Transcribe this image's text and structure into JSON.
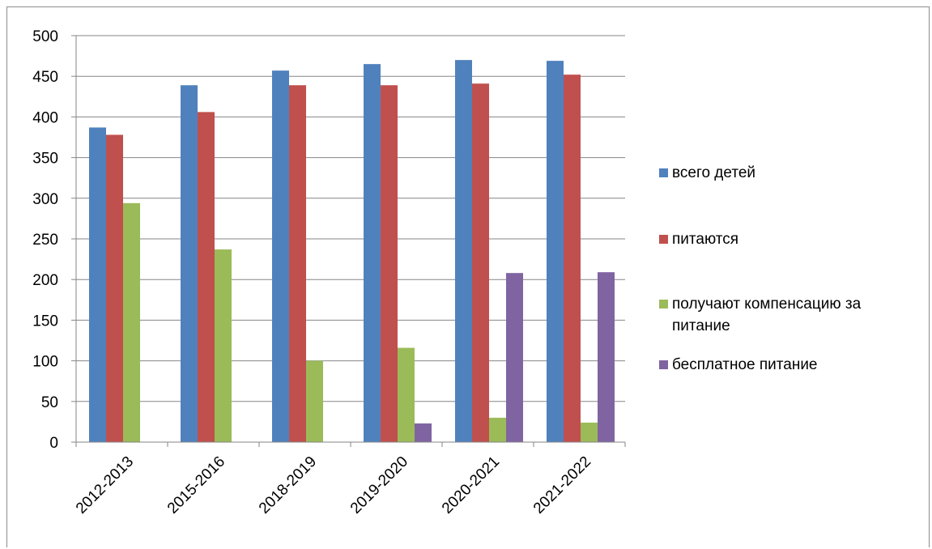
{
  "chart_data": {
    "type": "bar",
    "categories": [
      "2012-2013",
      "2015-2016",
      "2018-2019",
      "2019-2020",
      "2020-2021",
      "2021-2022"
    ],
    "series": [
      {
        "name": "всего детей",
        "values": [
          387,
          439,
          457,
          465,
          470,
          469
        ],
        "color": "#4F81BD"
      },
      {
        "name": "питаются",
        "values": [
          378,
          406,
          439,
          439,
          441,
          452
        ],
        "color": "#C0504D"
      },
      {
        "name": "получают компенсацию за питание",
        "values": [
          294,
          237,
          100,
          116,
          30,
          24
        ],
        "color": "#9BBB59"
      },
      {
        "name": "бесплатное питание",
        "values": [
          0,
          0,
          0,
          23,
          208,
          209
        ],
        "color": "#8064A2"
      }
    ],
    "ylim": [
      0,
      500
    ],
    "yticks": [
      "0",
      "50",
      "100",
      "150",
      "200",
      "250",
      "300",
      "350",
      "400",
      "450",
      "500"
    ],
    "grid": true,
    "legend_position": "right"
  }
}
